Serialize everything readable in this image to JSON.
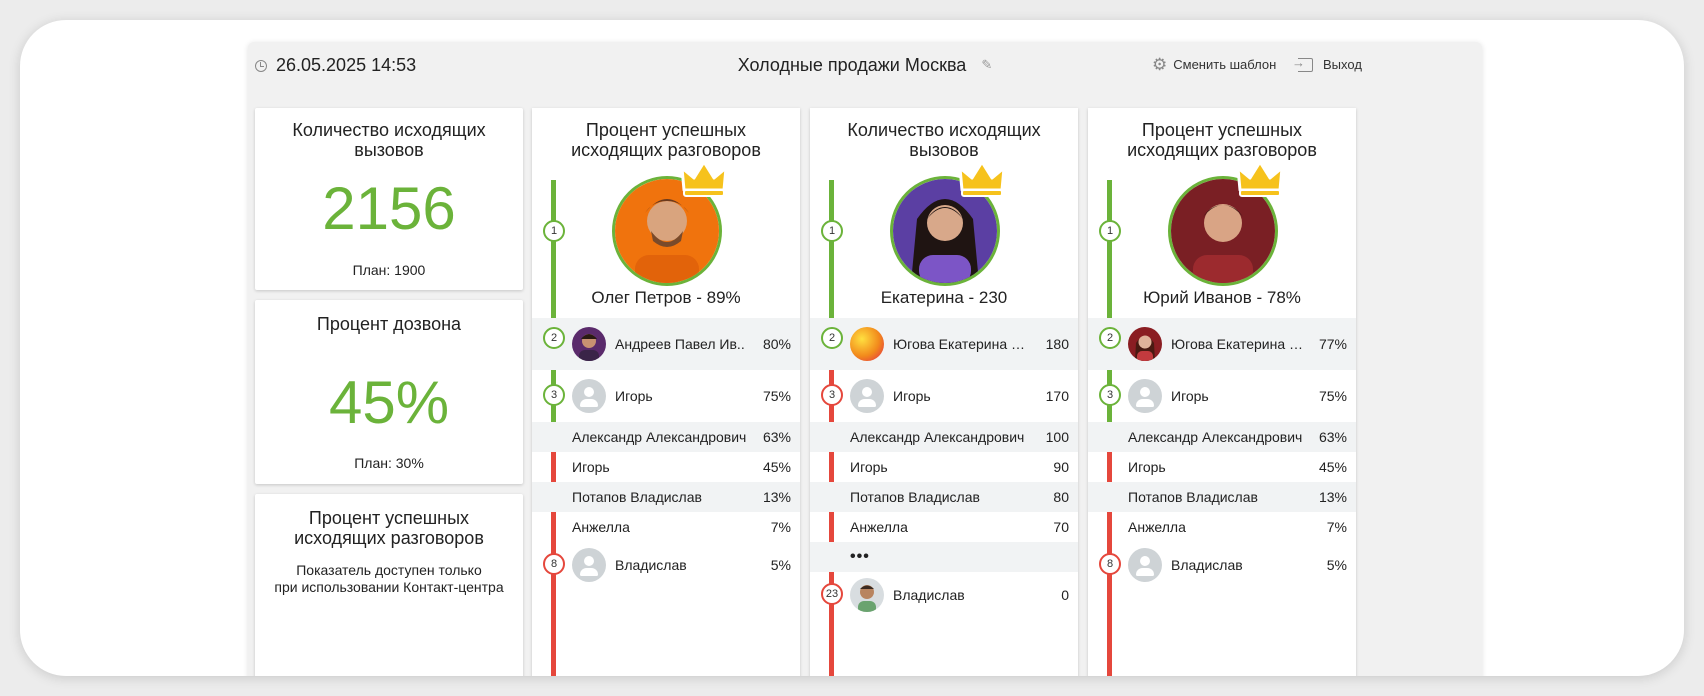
{
  "header": {
    "datetime": "26.05.2025 14:53",
    "title": "Холодные продажи Москва",
    "change_template": "Сменить шаблон",
    "exit": "Выход"
  },
  "metrics": [
    {
      "title": "Количество исходящих\nвызовов",
      "value": "2156",
      "plan": "План: 1900"
    },
    {
      "title": "Процент дозвона",
      "value": "45%",
      "plan": "План: 30%"
    },
    {
      "title": "Процент успешных\nисходящих разговоров",
      "note": "Показатель доступен только\nпри использовании Контакт-центра"
    }
  ],
  "colors": {
    "green": "#6bb33a",
    "red": "#e5473c"
  },
  "leaderboards": [
    {
      "title": "Процент успешных\nисходящих разговоров",
      "winner": {
        "rank": "1",
        "name": "Олег Петров - 89%"
      },
      "rows": [
        {
          "rank": "2",
          "name": "Андреев Павел Ив..",
          "value": "80%",
          "avatar": "photo"
        },
        {
          "rank": "3",
          "name": "Игорь",
          "value": "75%",
          "avatar": "gray"
        },
        {
          "name": "Александр Александрович",
          "value": "63%"
        },
        {
          "name": "Игорь",
          "value": "45%"
        },
        {
          "name": "Потапов Владислав",
          "value": "13%"
        },
        {
          "name": "Анжелла",
          "value": "7%"
        },
        {
          "rank": "8",
          "name": "Владислав",
          "value": "5%",
          "avatar": "gray"
        }
      ]
    },
    {
      "title": "Количество исходящих\nвызовов",
      "winner": {
        "rank": "1",
        "name": "Екатерина - 230"
      },
      "rows": [
        {
          "rank": "2",
          "name": "Югова Екатерина Викторовна",
          "value": "180",
          "avatar": "gradient"
        },
        {
          "rank": "3",
          "name": "Игорь",
          "value": "170",
          "avatar": "gray"
        },
        {
          "name": "Александр Александрович",
          "value": "100"
        },
        {
          "name": "Игорь",
          "value": "90"
        },
        {
          "name": "Потапов Владислав",
          "value": "80"
        },
        {
          "name": "Анжелла",
          "value": "70"
        },
        {
          "name": "•••",
          "value": ""
        },
        {
          "rank": "23",
          "name": "Владислав",
          "value": "0",
          "avatar": "photo"
        }
      ]
    },
    {
      "title": "Процент успешных\nисходящих разговоров",
      "winner": {
        "rank": "1",
        "name": "Юрий Иванов - 78%"
      },
      "rows": [
        {
          "rank": "2",
          "name": "Югова Екатерина Викторовна",
          "value": "77%",
          "avatar": "photo"
        },
        {
          "rank": "3",
          "name": "Игорь",
          "value": "75%",
          "avatar": "gray"
        },
        {
          "name": "Александр Александрович",
          "value": "63%"
        },
        {
          "name": "Игорь",
          "value": "45%"
        },
        {
          "name": "Потапов Владислав",
          "value": "13%"
        },
        {
          "name": "Анжелла",
          "value": "7%"
        },
        {
          "rank": "8",
          "name": "Владислав",
          "value": "5%",
          "avatar": "gray"
        }
      ]
    }
  ]
}
